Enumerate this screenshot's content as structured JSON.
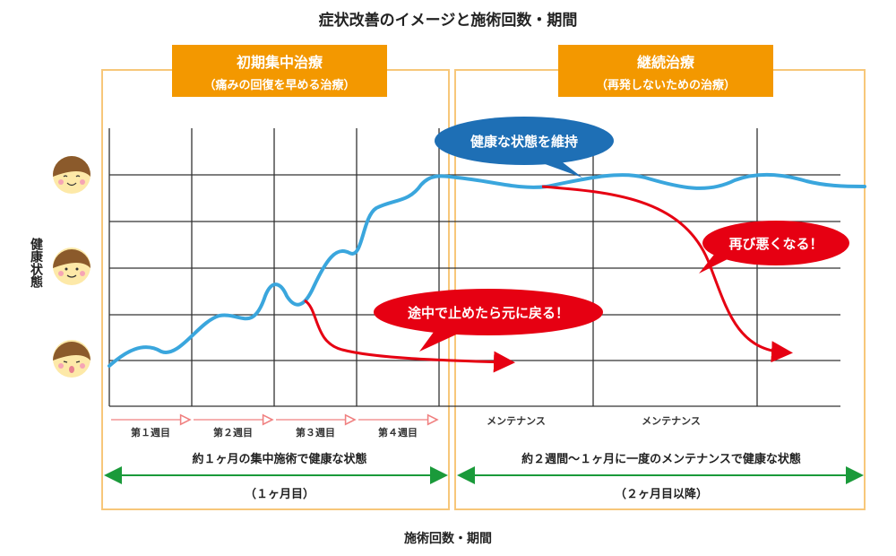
{
  "title": "症状改善のイメージと施術回数・期間",
  "y_axis_label": "健康状態",
  "x_axis_label": "施術回数・期間",
  "phases": [
    {
      "name": "初期集中治療",
      "subtitle": "（痛みの回復を早める治療）",
      "summary": "約１ヶ月の集中施術で健康な状態",
      "period": "（１ヶ月目）"
    },
    {
      "name": "継続治療",
      "subtitle": "（再発しないための治療）",
      "summary": "約２週間～１ヶ月に一度のメンテナンスで健康な状態",
      "period": "（２ヶ月目以降）"
    }
  ],
  "weeks": [
    "第１週目",
    "第２週目",
    "第３週目",
    "第４週目"
  ],
  "maintenance_labels": [
    "メンテナンス",
    "メンテナンス"
  ],
  "callouts": {
    "maintain": "健康な状態を維持",
    "stop_midway": "途中で止めたら元に戻る！",
    "worse_again": "再び悪くなる！"
  },
  "faces": [
    "happy-face-icon",
    "neutral-face-icon",
    "distressed-face-icon"
  ],
  "colors": {
    "header": "#f39800",
    "frame": "#f7c77a",
    "health_curve": "#3aa6dd",
    "relapse": "#e60012",
    "callout_blue": "#1e6fb5",
    "callout_red": "#e60012",
    "period_arrow": "#1a9a3a",
    "week_arrow": "#f08080"
  }
}
